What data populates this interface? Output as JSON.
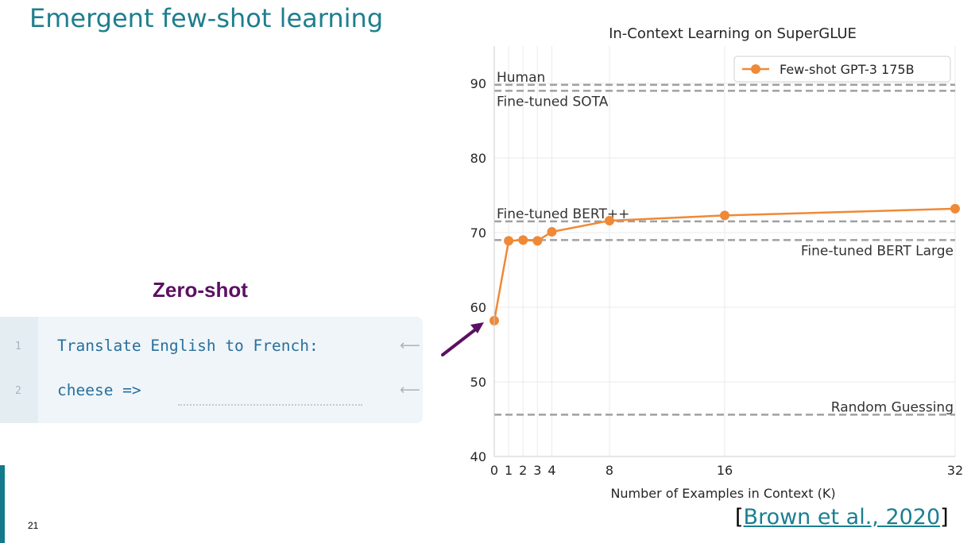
{
  "slide": {
    "title": "Emergent few-shot learning",
    "page_number": "21",
    "citation": {
      "open": "[",
      "link": "Brown et al., 2020",
      "close": "]"
    }
  },
  "example": {
    "heading": "Zero-shot",
    "lines": [
      {
        "number": "1",
        "text": "Translate English to French:"
      },
      {
        "number": "2",
        "text": "cheese =>"
      }
    ],
    "arrow_glyph": "⟵"
  },
  "colors": {
    "title": "#1e7f8e",
    "heading": "#5c1062",
    "series": "#ef8936",
    "reference_line": "#a0a0a0",
    "code_text": "#2a6f9c"
  },
  "chart_data": {
    "type": "line",
    "title": "In-Context Learning on SuperGLUE",
    "xlabel": "Number of Examples in Context (K)",
    "ylabel": "",
    "xlim": [
      0,
      32
    ],
    "ylim": [
      40,
      95
    ],
    "x_ticks": [
      0,
      1,
      2,
      3,
      4,
      8,
      16,
      32
    ],
    "y_ticks": [
      40,
      50,
      60,
      70,
      80,
      90
    ],
    "grid": true,
    "legend_position": "top-right",
    "series": [
      {
        "name": "Few-shot GPT-3 175B",
        "x": [
          0,
          1,
          2,
          3,
          4,
          8,
          16,
          32
        ],
        "y": [
          58.2,
          68.9,
          69.0,
          68.9,
          70.1,
          71.6,
          72.3,
          73.2
        ]
      }
    ],
    "reference_lines": [
      {
        "label": "Human",
        "y": 89.8,
        "label_position": "top-left"
      },
      {
        "label": "Fine-tuned SOTA",
        "y": 89.0,
        "label_position": "bottom-left"
      },
      {
        "label": "Fine-tuned BERT++",
        "y": 71.5,
        "label_position": "top-left"
      },
      {
        "label": "Fine-tuned BERT Large",
        "y": 69.0,
        "label_position": "bottom-right"
      },
      {
        "label": "Random Guessing",
        "y": 45.6,
        "label_position": "top-right"
      }
    ]
  }
}
